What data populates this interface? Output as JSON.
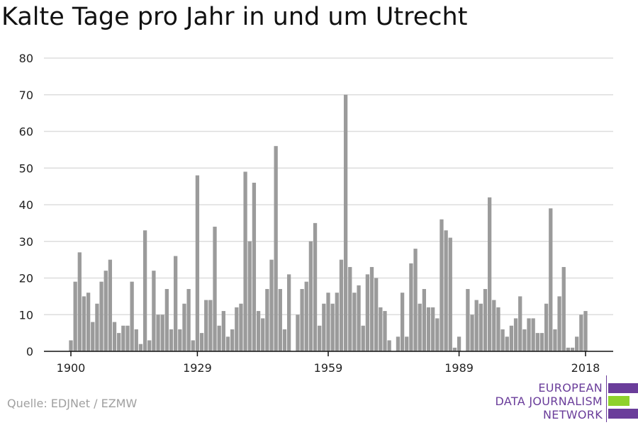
{
  "title": "Kalte Tage pro Jahr in und um Utrecht",
  "source": "Quelle: EDJNet / EZMW",
  "logo": {
    "lines": [
      "EUROPEAN",
      "DATA JOURNALISM",
      "NETWORK"
    ],
    "colors": {
      "purple": "#6a3d9a",
      "green": "#8ed12c"
    }
  },
  "colors": {
    "bar": "#9b9b9b",
    "grid": "#dddddd",
    "axis": "#111111",
    "text": "#222222"
  },
  "chart_data": {
    "type": "bar",
    "title": "Kalte Tage pro Jahr in und um Utrecht",
    "xlabel": "",
    "ylabel": "",
    "ylim": [
      0,
      80
    ],
    "yticks": [
      0,
      10,
      20,
      30,
      40,
      50,
      60,
      70,
      80
    ],
    "xticks": [
      1900,
      1929,
      1959,
      1989,
      2018
    ],
    "grid": true,
    "categories": [
      1900,
      1901,
      1902,
      1903,
      1904,
      1905,
      1906,
      1907,
      1908,
      1909,
      1910,
      1911,
      1912,
      1913,
      1914,
      1915,
      1916,
      1917,
      1918,
      1919,
      1920,
      1921,
      1922,
      1923,
      1924,
      1925,
      1926,
      1927,
      1928,
      1929,
      1930,
      1931,
      1932,
      1933,
      1934,
      1935,
      1936,
      1937,
      1938,
      1939,
      1940,
      1941,
      1942,
      1943,
      1944,
      1945,
      1946,
      1947,
      1948,
      1949,
      1950,
      1951,
      1952,
      1953,
      1954,
      1955,
      1956,
      1957,
      1958,
      1959,
      1960,
      1961,
      1962,
      1963,
      1964,
      1965,
      1966,
      1967,
      1968,
      1969,
      1970,
      1971,
      1972,
      1973,
      1974,
      1975,
      1976,
      1977,
      1978,
      1979,
      1980,
      1981,
      1982,
      1983,
      1984,
      1985,
      1986,
      1987,
      1988,
      1989,
      1990,
      1991,
      1992,
      1993,
      1994,
      1995,
      1996,
      1997,
      1998,
      1999,
      2000,
      2001,
      2002,
      2003,
      2004,
      2005,
      2006,
      2007,
      2008,
      2009,
      2010,
      2011,
      2012,
      2013,
      2014,
      2015,
      2016,
      2017,
      2018
    ],
    "values": [
      3,
      19,
      27,
      15,
      16,
      8,
      13,
      19,
      22,
      25,
      8,
      5,
      7,
      7,
      19,
      6,
      2,
      33,
      3,
      22,
      10,
      10,
      17,
      6,
      26,
      6,
      13,
      17,
      3,
      48,
      5,
      14,
      14,
      34,
      7,
      11,
      4,
      6,
      12,
      13,
      49,
      30,
      46,
      11,
      9,
      17,
      25,
      56,
      17,
      6,
      21,
      0,
      10,
      17,
      19,
      30,
      35,
      7,
      13,
      16,
      13,
      16,
      25,
      70,
      23,
      16,
      18,
      7,
      21,
      23,
      20,
      12,
      11,
      3,
      0,
      4,
      16,
      4,
      24,
      28,
      13,
      17,
      12,
      12,
      9,
      36,
      33,
      31,
      1,
      4,
      0,
      17,
      10,
      14,
      13,
      17,
      42,
      14,
      12,
      6,
      4,
      7,
      9,
      15,
      6,
      9,
      9,
      5,
      5,
      13,
      39,
      6,
      15,
      23,
      1,
      1,
      4,
      10,
      11
    ]
  }
}
